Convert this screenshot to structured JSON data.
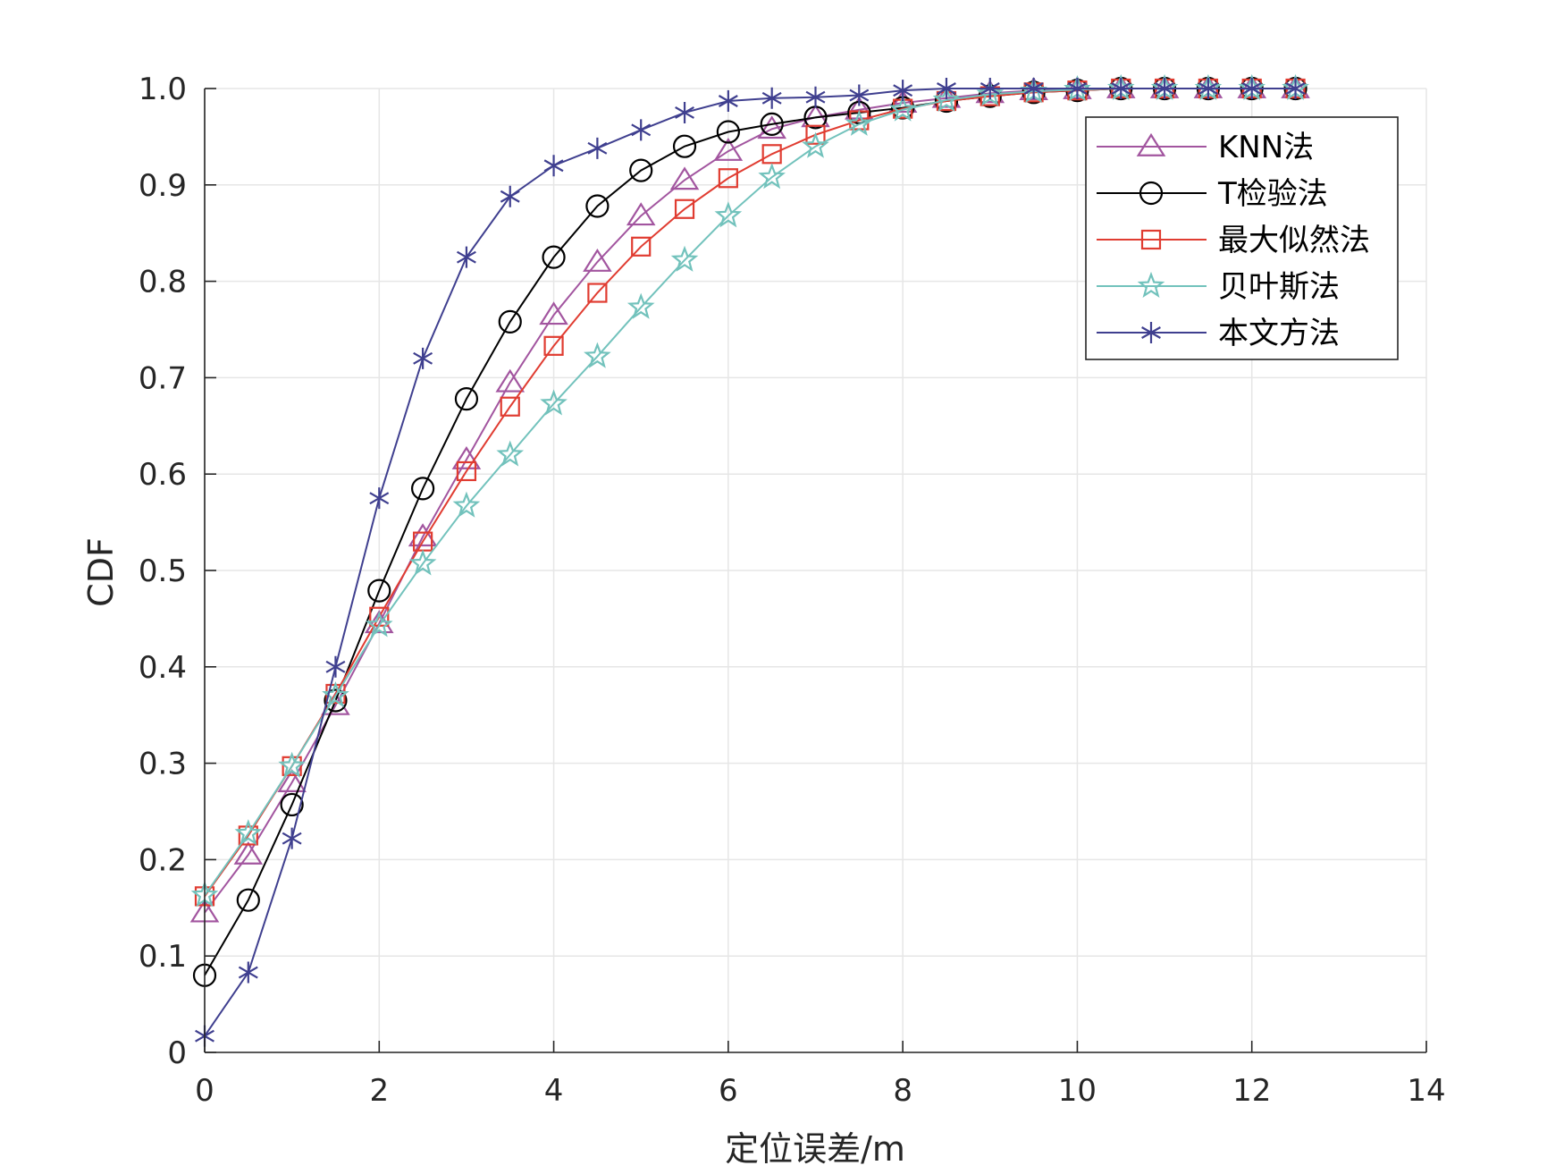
{
  "chart_data": {
    "type": "line",
    "xlabel": "定位误差/m",
    "ylabel": "CDF",
    "xlim": [
      0,
      14
    ],
    "ylim": [
      0,
      1
    ],
    "xticks": [
      0,
      2,
      4,
      6,
      8,
      10,
      12,
      14
    ],
    "yticks": [
      0,
      0.1,
      0.2,
      0.3,
      0.4,
      0.5,
      0.6,
      0.7,
      0.8,
      0.9,
      1.0
    ],
    "xtick_labels": [
      "0",
      "2",
      "4",
      "6",
      "8",
      "10",
      "12",
      "14"
    ],
    "ytick_labels": [
      "0",
      "0.1",
      "0.2",
      "0.3",
      "0.4",
      "0.5",
      "0.6",
      "0.7",
      "0.8",
      "0.9",
      "1.0"
    ],
    "grid": true,
    "legend_position": "top-right",
    "x": [
      0,
      0.5,
      1,
      1.5,
      2,
      2.5,
      3,
      3.5,
      4,
      4.5,
      5,
      5.5,
      6,
      6.5,
      7,
      7.5,
      8,
      8.5,
      9,
      9.5,
      10,
      10.5,
      11,
      11.5,
      12,
      12.5
    ],
    "series": [
      {
        "name": "KNN法",
        "color": "#a2559f",
        "marker": "triangle",
        "values": [
          0.145,
          0.205,
          0.28,
          0.36,
          0.445,
          0.535,
          0.615,
          0.695,
          0.765,
          0.82,
          0.868,
          0.905,
          0.935,
          0.958,
          0.97,
          0.978,
          0.985,
          0.99,
          0.995,
          0.998,
          0.999,
          1.0,
          1.0,
          1.0,
          1.0,
          1.0
        ]
      },
      {
        "name": "T检验法",
        "color": "#000000",
        "marker": "circle",
        "values": [
          0.08,
          0.158,
          0.257,
          0.365,
          0.479,
          0.585,
          0.678,
          0.758,
          0.825,
          0.878,
          0.915,
          0.94,
          0.955,
          0.963,
          0.97,
          0.975,
          0.98,
          0.987,
          0.992,
          0.996,
          0.998,
          1.0,
          1.0,
          1.0,
          1.0,
          1.0
        ]
      },
      {
        "name": "最大似然法",
        "color": "#e03c31",
        "marker": "square",
        "values": [
          0.162,
          0.225,
          0.297,
          0.372,
          0.452,
          0.53,
          0.603,
          0.67,
          0.733,
          0.788,
          0.836,
          0.875,
          0.907,
          0.932,
          0.952,
          0.967,
          0.979,
          0.987,
          0.992,
          0.996,
          0.998,
          1.0,
          1.0,
          1.0,
          1.0,
          1.0
        ]
      },
      {
        "name": "贝叶斯法",
        "color": "#72c2bc",
        "marker": "star",
        "values": [
          0.163,
          0.227,
          0.297,
          0.37,
          0.443,
          0.507,
          0.567,
          0.62,
          0.673,
          0.722,
          0.773,
          0.822,
          0.868,
          0.908,
          0.94,
          0.963,
          0.978,
          0.988,
          0.994,
          0.997,
          0.999,
          1.0,
          1.0,
          1.0,
          1.0,
          1.0
        ]
      },
      {
        "name": "本文方法",
        "color": "#3f3f8f",
        "marker": "asterisk",
        "values": [
          0.017,
          0.083,
          0.222,
          0.4,
          0.575,
          0.72,
          0.825,
          0.888,
          0.92,
          0.938,
          0.957,
          0.975,
          0.987,
          0.99,
          0.991,
          0.993,
          0.998,
          1.0,
          1.0,
          1.0,
          1.0,
          1.0,
          1.0,
          1.0,
          1.0,
          1.0
        ]
      }
    ]
  }
}
